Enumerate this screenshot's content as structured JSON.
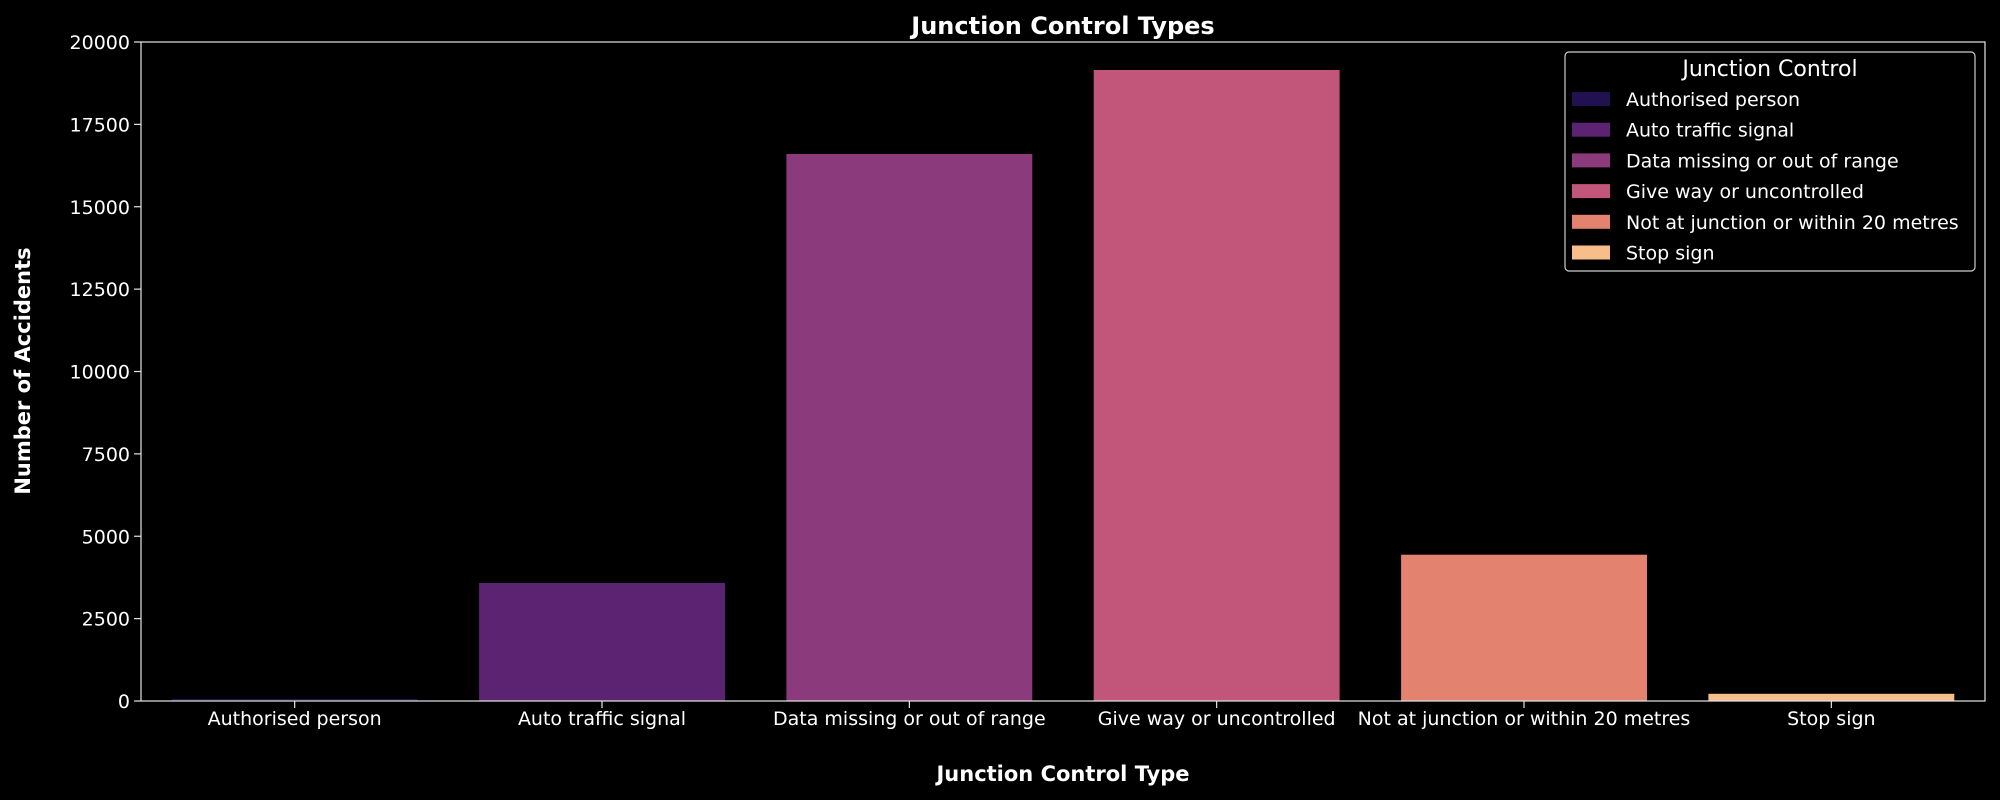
{
  "chart_data": {
    "type": "bar",
    "title": "Junction Control Types",
    "xlabel": "Junction Control Type",
    "ylabel": "Number of Accidents",
    "categories": [
      "Authorised person",
      "Auto traffic signal",
      "Data missing or out of range",
      "Give way or uncontrolled",
      "Not at junction or within 20 metres",
      "Stop sign"
    ],
    "values": [
      60,
      3580,
      16600,
      19150,
      4440,
      220
    ],
    "colors": [
      "#221150",
      "#5d2373",
      "#8b3a7b",
      "#c1557a",
      "#e48270",
      "#f8be8a"
    ],
    "ylim": [
      0,
      20000
    ],
    "yticks": [
      0,
      2500,
      5000,
      7500,
      10000,
      12500,
      15000,
      17500,
      20000
    ],
    "grid": false,
    "legend": {
      "title": "Junction Control",
      "placement": "top-right",
      "entries": [
        "Authorised person",
        "Auto traffic signal",
        "Data missing or out of range",
        "Give way or uncontrolled",
        "Not at junction or within 20 metres",
        "Stop sign"
      ]
    }
  }
}
